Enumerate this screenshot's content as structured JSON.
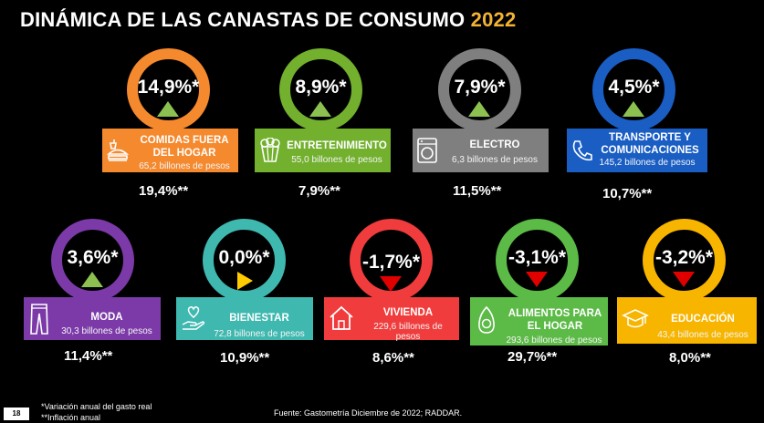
{
  "title": {
    "text": "DINÁMICA DE LAS CANASTAS DE CONSUMO",
    "year": "2022"
  },
  "categories": [
    {
      "name": "COMIDAS FUERA DEL HOGAR",
      "name_line1": "COMIDAS FUERA",
      "name_line2": "DEL HOGAR",
      "value": "65,2 billones de pesos",
      "variation": "14,9%*",
      "inflation": "19,4%**",
      "trend": "up",
      "icon": "fast-food-icon",
      "color": "#f5892e"
    },
    {
      "name": "ENTRETENIMIENTO",
      "value": "55,0 billones de pesos",
      "variation": "8,9%*",
      "inflation": "7,9%**",
      "trend": "up",
      "icon": "popcorn-icon",
      "color": "#72b02e"
    },
    {
      "name": "ELECTRO",
      "value": "6,3 billones de pesos",
      "variation": "7,9%*",
      "inflation": "11,5%**",
      "trend": "up",
      "icon": "washing-machine-icon",
      "color": "#7f7f7f"
    },
    {
      "name": "TRANSPORTE Y COMUNICACIONES",
      "name_line1": "TRANSPORTE Y",
      "name_line2": "COMUNICACIONES",
      "value": "145,2 billones de pesos",
      "variation": "4,5%*",
      "inflation": "10,7%**",
      "trend": "up",
      "icon": "phone-icon",
      "color": "#1a5ec4"
    },
    {
      "name": "MODA",
      "value": "30,3 billones de pesos",
      "variation": "3,6%*",
      "inflation": "11,4%**",
      "trend": "up",
      "icon": "pants-icon",
      "color": "#7b3aa8"
    },
    {
      "name": "BIENESTAR",
      "value": "72,8 billones de pesos",
      "variation": "0,0%*",
      "inflation": "10,9%**",
      "trend": "flat",
      "icon": "heart-hand-icon",
      "color": "#3fb8b0"
    },
    {
      "name": "VIVIENDA",
      "value_line1": "229,6 billones de",
      "value_line2": "pesos",
      "variation": "-1,7%*",
      "inflation": "8,6%**",
      "trend": "down",
      "icon": "house-icon",
      "color": "#f03c3c"
    },
    {
      "name": "ALIMENTOS PARA EL HOGAR",
      "name_line1": "ALIMENTOS PARA",
      "name_line2": "EL HOGAR",
      "value": "293,6 billones de pesos",
      "variation": "-3,1%*",
      "inflation": "29,7%**",
      "trend": "down",
      "icon": "avocado-icon",
      "color": "#5cba47"
    },
    {
      "name": "EDUCACIÓN",
      "value": "43,4 billones de pesos",
      "variation": "-3,2%*",
      "inflation": "8,0%**",
      "trend": "down",
      "icon": "graduation-cap-icon",
      "color": "#f7b500"
    }
  ],
  "footer": {
    "page_number": "18",
    "note1": "*Variación anual del gasto real",
    "note2": "**Inflación anual",
    "source": "Fuente: Gastometría Diciembre de 2022;  RADDAR."
  }
}
